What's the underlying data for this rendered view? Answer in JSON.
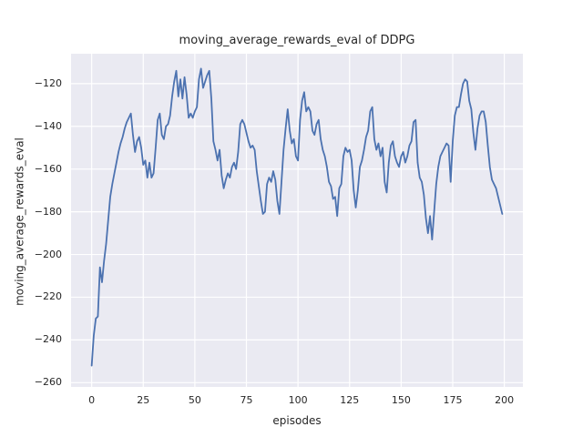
{
  "figure": {
    "title": "moving_average_rewards_eval of DDPG",
    "background_color": "#ffffff",
    "axes_background_color": "#eaeaf2",
    "grid_color": "#ffffff",
    "line_color": "#4c72b0",
    "text_color": "#262626"
  },
  "chart_data": {
    "type": "line",
    "title": "moving_average_rewards_eval of DDPG",
    "xlabel": "episodes",
    "ylabel": "moving_average_rewards_eval",
    "grid": true,
    "legend": false,
    "xlim": [
      -10,
      209
    ],
    "ylim": [
      -262,
      -106
    ],
    "x_ticks": [
      0,
      25,
      50,
      75,
      100,
      125,
      150,
      175,
      200
    ],
    "y_ticks": [
      -120,
      -140,
      -160,
      -180,
      -200,
      -220,
      -240,
      -260
    ],
    "series": [
      {
        "name": "moving_average_rewards_eval",
        "color": "#4c72b0",
        "x": [
          0,
          1,
          2,
          3,
          4,
          5,
          6,
          7,
          8,
          9,
          10,
          11,
          12,
          13,
          14,
          15,
          16,
          17,
          18,
          19,
          20,
          21,
          22,
          23,
          24,
          25,
          26,
          27,
          28,
          29,
          30,
          31,
          32,
          33,
          34,
          35,
          36,
          37,
          38,
          39,
          40,
          41,
          42,
          43,
          44,
          45,
          46,
          47,
          48,
          49,
          50,
          51,
          52,
          53,
          54,
          55,
          56,
          57,
          58,
          59,
          60,
          61,
          62,
          63,
          64,
          65,
          66,
          67,
          68,
          69,
          70,
          71,
          72,
          73,
          74,
          75,
          76,
          77,
          78,
          79,
          80,
          81,
          82,
          83,
          84,
          85,
          86,
          87,
          88,
          89,
          90,
          91,
          92,
          93,
          94,
          95,
          96,
          97,
          98,
          99,
          100,
          101,
          102,
          103,
          104,
          105,
          106,
          107,
          108,
          109,
          110,
          111,
          112,
          113,
          114,
          115,
          116,
          117,
          118,
          119,
          120,
          121,
          122,
          123,
          124,
          125,
          126,
          127,
          128,
          129,
          130,
          131,
          132,
          133,
          134,
          135,
          136,
          137,
          138,
          139,
          140,
          141,
          142,
          143,
          144,
          145,
          146,
          147,
          148,
          149,
          150,
          151,
          152,
          153,
          154,
          155,
          156,
          157,
          158,
          159,
          160,
          161,
          162,
          163,
          164,
          165,
          166,
          167,
          168,
          169,
          170,
          171,
          172,
          173,
          174,
          175,
          176,
          177,
          178,
          179,
          180,
          181,
          182,
          183,
          184,
          185,
          186,
          187,
          188,
          189,
          190,
          191,
          192,
          193,
          194,
          195,
          196,
          197,
          198,
          199
        ],
        "y": [
          -252,
          -238,
          -230,
          -229,
          -206,
          -213,
          -203,
          -195,
          -184,
          -173,
          -167,
          -162,
          -157,
          -152,
          -148,
          -145,
          -141,
          -138,
          -136,
          -134,
          -144,
          -152,
          -147,
          -145,
          -150,
          -158,
          -156,
          -164,
          -157,
          -164,
          -162,
          -150,
          -137,
          -134,
          -144,
          -146,
          -140,
          -139,
          -135,
          -126,
          -119,
          -114,
          -126,
          -118,
          -127,
          -117,
          -125,
          -136,
          -134,
          -136,
          -133,
          -131,
          -118,
          -113,
          -122,
          -119,
          -116,
          -114,
          -127,
          -147,
          -151,
          -156,
          -151,
          -163,
          -169,
          -165,
          -162,
          -164,
          -159,
          -157,
          -160,
          -152,
          -139,
          -137,
          -139,
          -143,
          -147,
          -150,
          -149,
          -151,
          -161,
          -168,
          -175,
          -181,
          -180,
          -167,
          -164,
          -166,
          -161,
          -165,
          -175,
          -181,
          -166,
          -151,
          -141,
          -132,
          -142,
          -148,
          -146,
          -154,
          -156,
          -137,
          -128,
          -124,
          -133,
          -131,
          -133,
          -142,
          -144,
          -139,
          -137,
          -146,
          -151,
          -154,
          -159,
          -166,
          -168,
          -174,
          -173,
          -182,
          -169,
          -167,
          -154,
          -150,
          -152,
          -151,
          -156,
          -170,
          -178,
          -170,
          -159,
          -156,
          -151,
          -145,
          -142,
          -133,
          -131,
          -146,
          -151,
          -148,
          -154,
          -150,
          -166,
          -171,
          -157,
          -149,
          -147,
          -154,
          -157,
          -159,
          -154,
          -152,
          -157,
          -154,
          -149,
          -147,
          -138,
          -137,
          -157,
          -164,
          -166,
          -172,
          -183,
          -190,
          -182,
          -193,
          -180,
          -167,
          -159,
          -154,
          -152,
          -150,
          -148,
          -149,
          -166,
          -147,
          -135,
          -131,
          -131,
          -125,
          -120,
          -118,
          -119,
          -128,
          -132,
          -143,
          -151,
          -141,
          -135,
          -133,
          -133,
          -138,
          -149,
          -159,
          -165,
          -167,
          -169,
          -173,
          -177,
          -181
        ]
      }
    ]
  }
}
